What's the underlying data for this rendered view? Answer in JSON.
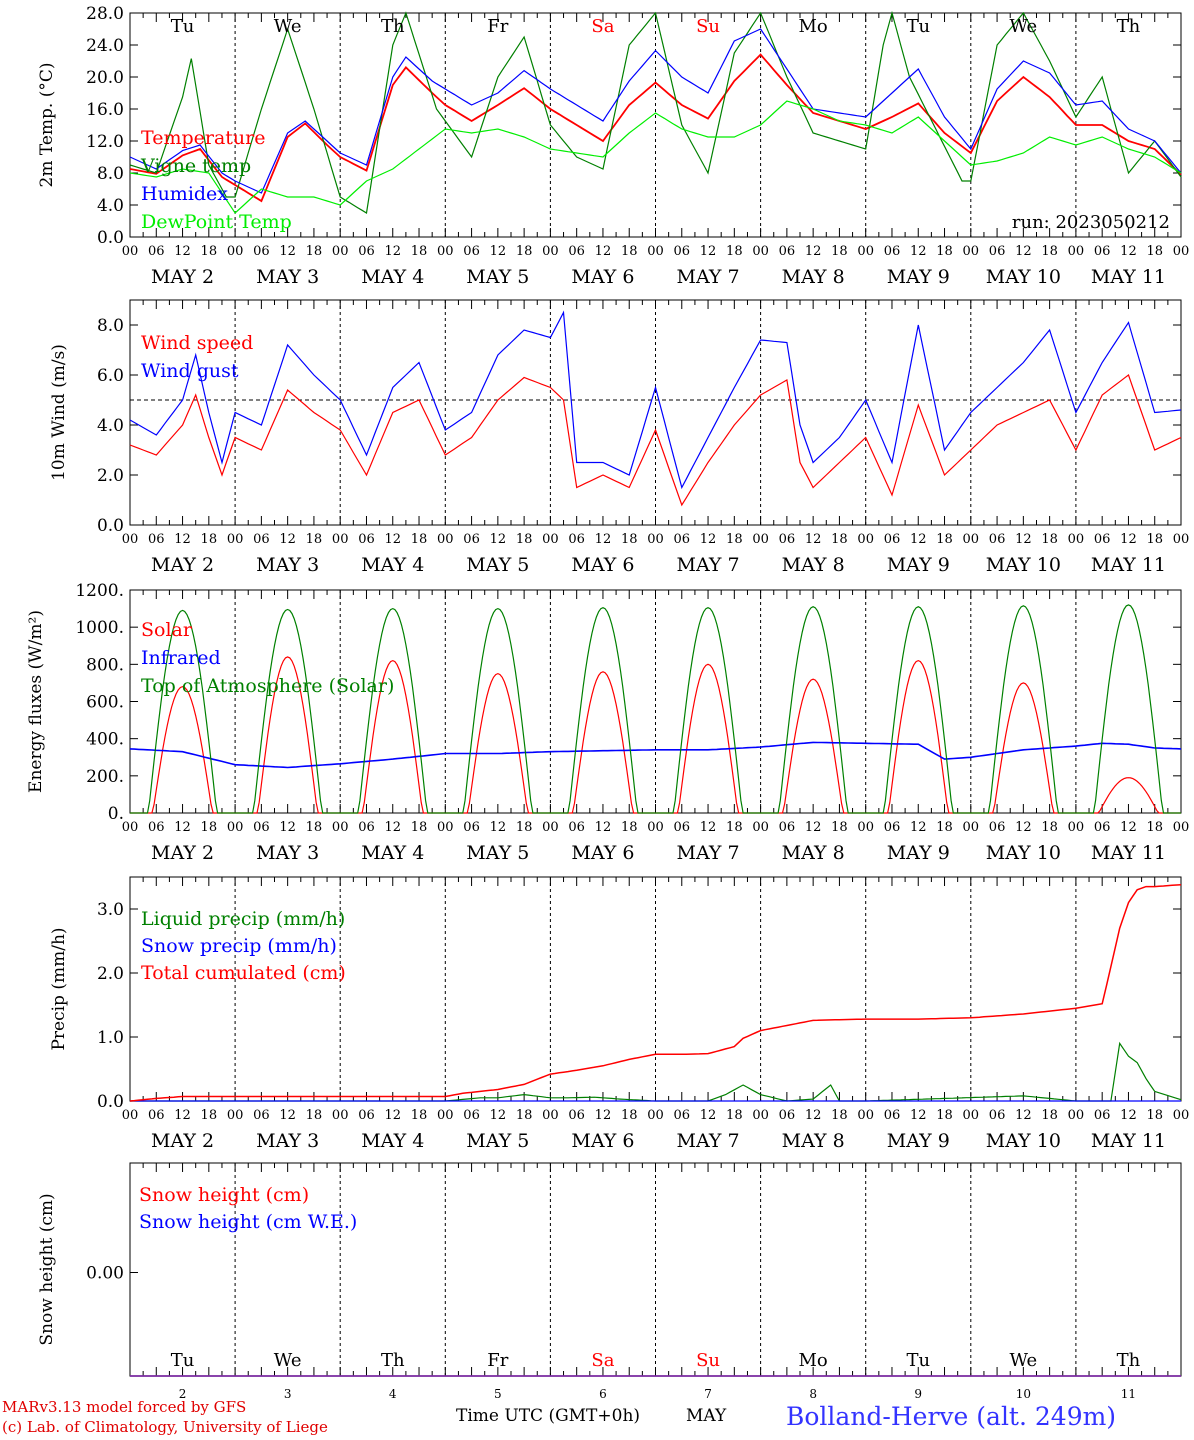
{
  "chart_data": [
    {
      "type": "line",
      "ylabel": "2m Temp. (°C)",
      "ylim": [
        0,
        28
      ],
      "yticks": [
        "0.0",
        "4.0",
        "8.0",
        "12.0",
        "16.0",
        "20.0",
        "24.0",
        "28.0"
      ],
      "run_label": "run: 2023050212",
      "day_labels": [
        "Tu",
        "We",
        "Th",
        "Fr",
        "Sa",
        "Su",
        "Mo",
        "Tu",
        "We",
        "Th"
      ],
      "x_unit": "hours since MAY 2 00 UTC",
      "series": [
        {
          "name": "Temperature",
          "color": "#ff0000",
          "x": [
            0,
            6,
            12,
            16,
            21,
            24,
            30,
            36,
            40,
            45,
            48,
            54,
            60,
            63,
            69,
            72,
            78,
            84,
            90,
            96,
            102,
            108,
            114,
            120,
            126,
            132,
            138,
            144,
            150,
            156,
            162,
            168,
            174,
            180,
            186,
            192,
            198,
            204,
            210,
            216,
            222,
            228,
            234,
            240
          ],
          "y": [
            8.5,
            7.9,
            10.2,
            11.0,
            7.5,
            6.5,
            4.5,
            12.5,
            14.2,
            11.5,
            10.0,
            8.3,
            19.0,
            21.2,
            18.0,
            16.5,
            14.5,
            16.5,
            18.6,
            16.0,
            14.0,
            12.0,
            16.5,
            19.3,
            16.5,
            14.8,
            19.5,
            22.8,
            19.0,
            15.5,
            14.5,
            13.5,
            15.0,
            16.7,
            13.0,
            10.5,
            17.0,
            20.0,
            17.5,
            14.0,
            14.0,
            12.0,
            11.0,
            7.8
          ]
        },
        {
          "name": "Vigne temp",
          "color": "#008000",
          "x": [
            0,
            6,
            12,
            14,
            18,
            22,
            24,
            30,
            36,
            42,
            48,
            54,
            60,
            63,
            70,
            72,
            78,
            84,
            90,
            96,
            102,
            108,
            114,
            120,
            126,
            132,
            138,
            144,
            150,
            156,
            162,
            168,
            172,
            174,
            178,
            184,
            190,
            192,
            198,
            204,
            210,
            216,
            222,
            228,
            234,
            240
          ],
          "y": [
            9.0,
            8.0,
            17.5,
            22.3,
            9.0,
            5.0,
            5.0,
            16.0,
            26.0,
            16.0,
            5.0,
            3.0,
            24.0,
            28.0,
            16.0,
            14.5,
            10.0,
            20.0,
            25.0,
            14.0,
            10.0,
            8.5,
            24.0,
            28.0,
            14.0,
            8.0,
            23.0,
            28.0,
            20.0,
            13.0,
            12.0,
            11.0,
            24.0,
            28.0,
            20.0,
            13.5,
            7.0,
            7.0,
            24.0,
            28.0,
            22.0,
            15.0,
            20.0,
            8.0,
            12.0,
            7.5
          ]
        },
        {
          "name": "Humidex",
          "color": "#0000ff",
          "x": [
            0,
            6,
            12,
            16,
            21,
            24,
            30,
            36,
            40,
            45,
            48,
            54,
            60,
            63,
            69,
            72,
            78,
            84,
            90,
            96,
            102,
            108,
            114,
            120,
            126,
            132,
            138,
            144,
            150,
            156,
            162,
            168,
            174,
            180,
            186,
            192,
            198,
            204,
            210,
            216,
            222,
            228,
            234,
            240
          ],
          "y": [
            10.0,
            8.5,
            10.8,
            11.5,
            8.0,
            7.0,
            5.5,
            13.0,
            14.5,
            12.0,
            10.5,
            9.0,
            20.0,
            22.5,
            19.5,
            18.5,
            16.5,
            18.0,
            20.8,
            18.5,
            16.5,
            14.5,
            19.5,
            23.3,
            20.0,
            18.0,
            24.5,
            26.0,
            21.0,
            16.0,
            15.5,
            15.0,
            18.0,
            21.0,
            15.0,
            11.0,
            18.5,
            22.0,
            20.5,
            16.5,
            17.0,
            13.5,
            12.0,
            8.0
          ]
        },
        {
          "name": "DewPoint Temp",
          "color": "#00ee00",
          "x": [
            0,
            6,
            12,
            18,
            24,
            30,
            36,
            42,
            48,
            54,
            60,
            66,
            72,
            78,
            84,
            90,
            96,
            102,
            108,
            114,
            120,
            126,
            132,
            138,
            144,
            150,
            156,
            162,
            168,
            174,
            180,
            186,
            192,
            198,
            204,
            210,
            216,
            222,
            228,
            234,
            240
          ],
          "y": [
            8.0,
            7.5,
            8.5,
            8.0,
            3.0,
            6.0,
            5.0,
            5.0,
            4.0,
            7.0,
            8.5,
            11.0,
            13.5,
            13.0,
            13.5,
            12.5,
            11.0,
            10.5,
            10.0,
            13.0,
            15.5,
            13.5,
            12.5,
            12.5,
            14.0,
            17.0,
            16.0,
            14.5,
            14.0,
            13.0,
            15.0,
            12.0,
            9.0,
            9.5,
            10.5,
            12.5,
            11.5,
            12.5,
            11.0,
            10.0,
            8.0
          ]
        }
      ]
    },
    {
      "type": "line",
      "ylabel": "10m Wind (m/s)",
      "ylim": [
        0,
        9
      ],
      "yticks": [
        "0.0",
        "2.0",
        "4.0",
        "6.0",
        "8.0"
      ],
      "reference_line": 5.0,
      "series": [
        {
          "name": "Wind speed",
          "color": "#ff0000",
          "x": [
            0,
            6,
            12,
            15,
            18,
            21,
            24,
            30,
            36,
            42,
            48,
            54,
            60,
            66,
            72,
            78,
            84,
            90,
            96,
            99,
            102,
            108,
            114,
            120,
            126,
            132,
            138,
            144,
            150,
            153,
            156,
            162,
            168,
            174,
            180,
            186,
            192,
            198,
            204,
            210,
            216,
            222,
            228,
            234,
            240
          ],
          "y": [
            3.2,
            2.8,
            4.0,
            5.2,
            3.5,
            2.0,
            3.5,
            3.0,
            5.4,
            4.5,
            3.8,
            2.0,
            4.5,
            5.0,
            2.8,
            3.5,
            5.0,
            5.9,
            5.5,
            5.0,
            1.5,
            2.0,
            1.5,
            3.8,
            0.8,
            2.5,
            4.0,
            5.2,
            5.8,
            2.5,
            1.5,
            2.5,
            3.5,
            1.2,
            4.8,
            2.0,
            3.0,
            4.0,
            4.5,
            5.0,
            3.0,
            5.2,
            6.0,
            3.0,
            3.5
          ]
        },
        {
          "name": "Wind gust",
          "color": "#0000ff",
          "x": [
            0,
            6,
            12,
            15,
            18,
            21,
            24,
            30,
            36,
            42,
            48,
            54,
            60,
            66,
            72,
            78,
            84,
            90,
            96,
            99,
            102,
            108,
            114,
            120,
            126,
            132,
            138,
            144,
            150,
            153,
            156,
            162,
            168,
            174,
            180,
            186,
            192,
            198,
            204,
            210,
            216,
            222,
            228,
            234,
            240
          ],
          "y": [
            4.2,
            3.6,
            5.0,
            6.8,
            4.5,
            2.5,
            4.5,
            4.0,
            7.2,
            6.0,
            5.0,
            2.8,
            5.5,
            6.5,
            3.8,
            4.5,
            6.8,
            7.8,
            7.5,
            8.5,
            2.5,
            2.5,
            2.0,
            5.5,
            1.5,
            3.5,
            5.5,
            7.4,
            7.3,
            4.0,
            2.5,
            3.5,
            5.0,
            2.5,
            8.0,
            3.0,
            4.5,
            5.5,
            6.5,
            7.8,
            4.5,
            6.5,
            8.1,
            4.5,
            4.6
          ]
        }
      ]
    },
    {
      "type": "line",
      "ylabel": "Energy fluxes (W/m²)",
      "ylim": [
        0,
        1200
      ],
      "yticks": [
        "0.",
        "200.",
        "400.",
        "600.",
        "800.",
        "1000.",
        "1200."
      ],
      "series": [
        {
          "name": "Solar",
          "color": "#ff0000",
          "peaks_hour": [
            12,
            36,
            60,
            84,
            108,
            132,
            156,
            180,
            204,
            228
          ],
          "peaks_value": [
            680,
            840,
            820,
            750,
            760,
            800,
            720,
            820,
            700,
            190
          ]
        },
        {
          "name": "Infrared",
          "color": "#0000ff",
          "x": [
            0,
            12,
            24,
            36,
            48,
            60,
            72,
            84,
            96,
            108,
            120,
            132,
            144,
            156,
            168,
            180,
            186,
            192,
            204,
            216,
            222,
            228,
            234,
            240
          ],
          "y": [
            345,
            330,
            260,
            245,
            265,
            290,
            320,
            320,
            330,
            335,
            340,
            340,
            355,
            380,
            375,
            370,
            290,
            300,
            340,
            360,
            375,
            370,
            350,
            345
          ]
        },
        {
          "name": "Top of Atmosphere (Solar)",
          "color": "#008000",
          "peaks_hour": [
            12,
            36,
            60,
            84,
            108,
            132,
            156,
            180,
            204,
            228
          ],
          "peaks_value": [
            1090,
            1095,
            1100,
            1100,
            1105,
            1105,
            1110,
            1110,
            1115,
            1120
          ]
        }
      ]
    },
    {
      "type": "line",
      "ylabel": "Precip (mm/h)",
      "ylim": [
        0,
        3.5
      ],
      "yticks": [
        "0.0",
        "1.0",
        "2.0",
        "3.0"
      ],
      "series": [
        {
          "name": "Liquid precip (mm/h)",
          "color": "#008000",
          "x": [
            0,
            72,
            80,
            84,
            90,
            96,
            100,
            106,
            112,
            120,
            132,
            136,
            140,
            144,
            150,
            156,
            160,
            162,
            168,
            204,
            216,
            224,
            226,
            228,
            230,
            232,
            234,
            240
          ],
          "y": [
            0,
            0,
            0.05,
            0.05,
            0.1,
            0.05,
            0.05,
            0.06,
            0.03,
            0.0,
            0.0,
            0.1,
            0.25,
            0.1,
            0.0,
            0.03,
            0.25,
            0.0,
            0.0,
            0.08,
            0.0,
            0.0,
            0.9,
            0.7,
            0.6,
            0.35,
            0.15,
            0.02
          ]
        },
        {
          "name": "Snow precip (mm/h)",
          "color": "#0000ff",
          "x": [
            0,
            240
          ],
          "y": [
            0,
            0
          ]
        },
        {
          "name": "Total cumulated (cm)",
          "color": "#ff0000",
          "x": [
            0,
            6,
            12,
            24,
            48,
            72,
            76,
            84,
            90,
            96,
            102,
            108,
            114,
            120,
            126,
            132,
            138,
            140,
            144,
            150,
            156,
            168,
            180,
            192,
            204,
            216,
            222,
            224,
            226,
            228,
            230,
            232,
            234,
            240
          ],
          "y": [
            0,
            0.04,
            0.07,
            0.07,
            0.07,
            0.07,
            0.12,
            0.18,
            0.26,
            0.42,
            0.48,
            0.55,
            0.65,
            0.73,
            0.73,
            0.74,
            0.85,
            0.98,
            1.1,
            1.18,
            1.26,
            1.28,
            1.28,
            1.3,
            1.36,
            1.45,
            1.52,
            2.1,
            2.7,
            3.1,
            3.3,
            3.35,
            3.35,
            3.38
          ]
        }
      ]
    },
    {
      "type": "line",
      "ylabel": "Snow height (cm)",
      "yticks": [
        "0.00"
      ],
      "series": [
        {
          "name": "Snow height (cm)",
          "color": "#ff0000",
          "x": [
            0,
            240
          ],
          "y": [
            0,
            0
          ]
        },
        {
          "name": "Snow height (cm W.E.)",
          "color": "#0000ff",
          "x": [
            0,
            240
          ],
          "y": [
            0,
            0
          ]
        }
      ],
      "day_labels": [
        "Tu",
        "We",
        "Th",
        "Fr",
        "Sa",
        "Su",
        "Mo",
        "Tu",
        "We",
        "Th"
      ],
      "day_numbers": [
        "2",
        "3",
        "4",
        "5",
        "6",
        "7",
        "8",
        "9",
        "10",
        "11"
      ]
    }
  ],
  "date_labels": [
    "MAY  2",
    "MAY  3",
    "MAY  4",
    "MAY  5",
    "MAY  6",
    "MAY  7",
    "MAY  8",
    "MAY  9",
    "MAY 10",
    "MAY 11"
  ],
  "hour_ticks": [
    "00",
    "06",
    "12",
    "18"
  ],
  "weekend_days": [
    "Sa",
    "Su"
  ],
  "footer": {
    "credit_line1": "MARv3.13 model forced by GFS",
    "credit_line2": "(c) Lab. of Climatology, University of Liege",
    "time_axis_label": "Time UTC (GMT+0h)",
    "month_label": "MAY",
    "station": "Bolland-Herve (alt. 249m)"
  }
}
